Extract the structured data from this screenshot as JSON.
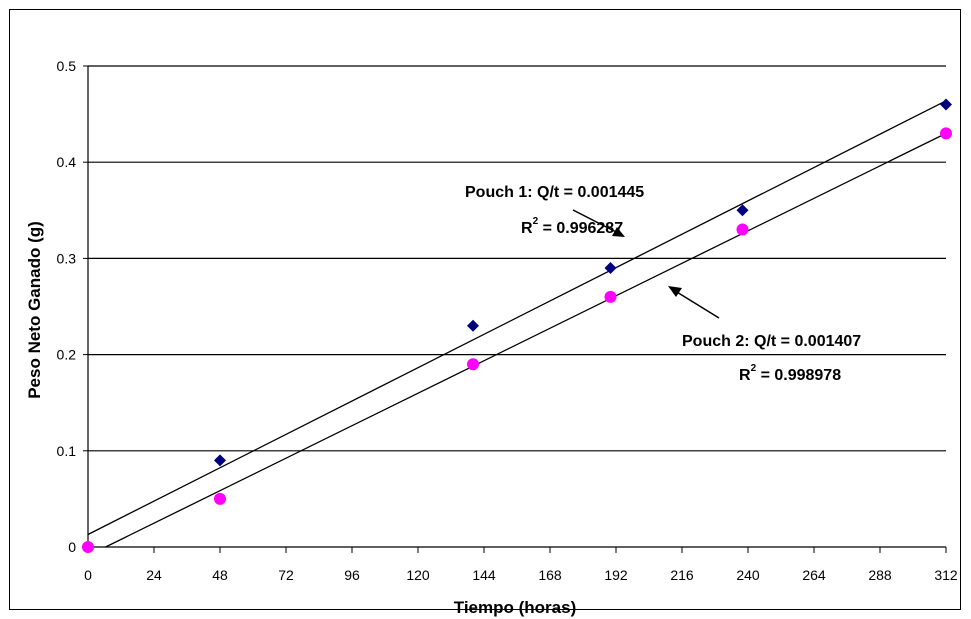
{
  "chart_data": {
    "type": "scatter",
    "xlabel": "Tiempo (horas)",
    "ylabel": "Peso Neto Ganado (g)",
    "xlim": [
      0,
      312
    ],
    "ylim": [
      0,
      0.5
    ],
    "x_ticks": [
      "0",
      "24",
      "48",
      "72",
      "96",
      "120",
      "144",
      "168",
      "192",
      "216",
      "240",
      "264",
      "288",
      "312"
    ],
    "y_ticks": [
      "0",
      "0.1",
      "0.2",
      "0.3",
      "0.4",
      "0.5"
    ],
    "grid": "horizontal",
    "series": [
      {
        "color": "#000080",
        "marker": "diamond",
        "points": [
          [
            0,
            0
          ],
          [
            48,
            0.09
          ],
          [
            140,
            0.23
          ],
          [
            190,
            0.29
          ],
          [
            238,
            0.35
          ],
          [
            312,
            0.46
          ]
        ],
        "trendline": {
          "slope": 0.001445,
          "intercept": 0.013
        }
      },
      {
        "color": "#ff00ff",
        "marker": "circle",
        "points": [
          [
            0,
            0
          ],
          [
            48,
            0.05
          ],
          [
            140,
            0.19
          ],
          [
            190,
            0.26
          ],
          [
            238,
            0.33
          ],
          [
            312,
            0.43
          ]
        ],
        "trendline": {
          "slope": 0.001407,
          "intercept": -0.009
        }
      }
    ],
    "annotations": [
      {
        "line1": "Pouch 1:  Q/t =  0.001445",
        "r2_prefix": "R",
        "r2_sup": "2",
        "r2_value": " = 0.996287"
      },
      {
        "line1": "Pouch 2:  Q/t = 0.001407",
        "r2_prefix": "R",
        "r2_sup": "2",
        "r2_value": " = 0.998978"
      }
    ]
  }
}
